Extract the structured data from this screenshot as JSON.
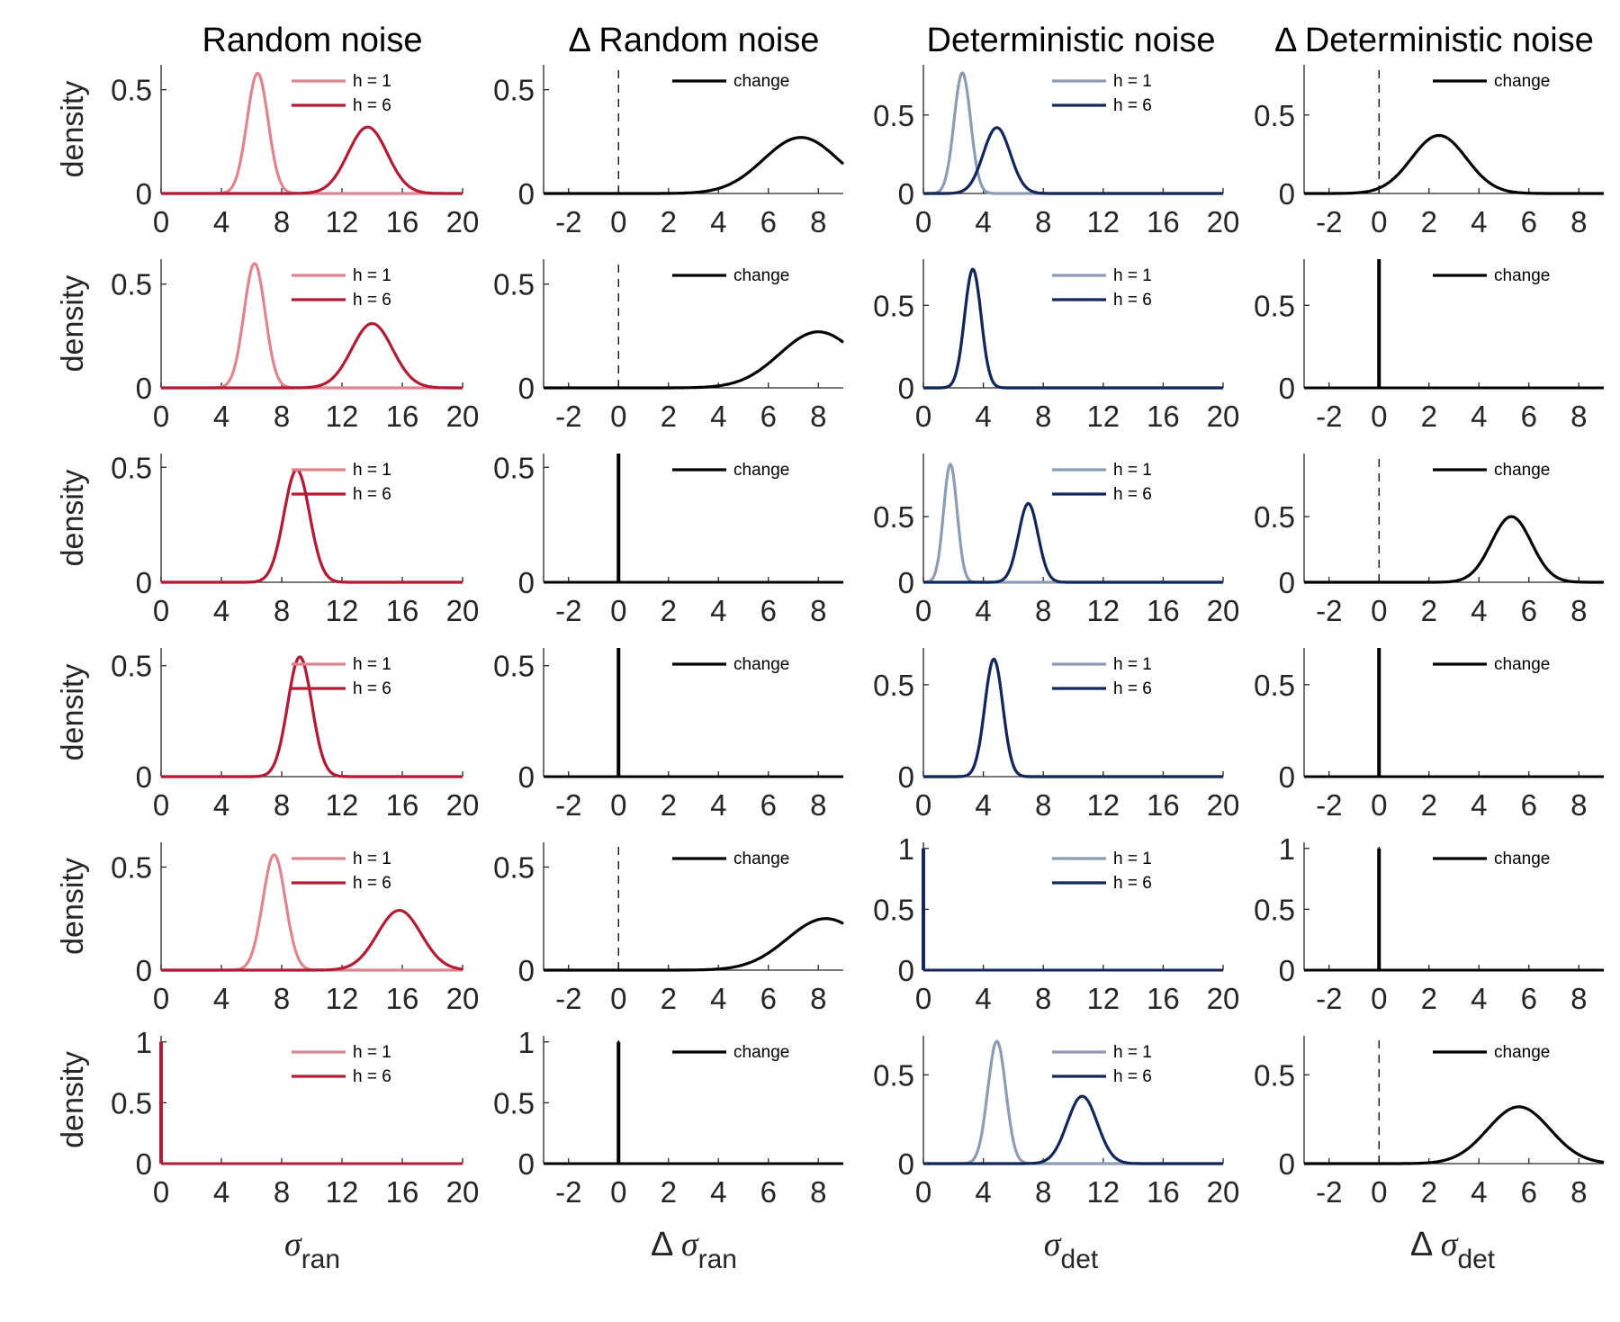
{
  "colors": {
    "ran_h1": "#e0848f",
    "ran_h6": "#b31b34",
    "det_h1": "#8d9bb4",
    "det_h6": "#13265a",
    "change": "#000000"
  },
  "column_titles": [
    "Random noise",
    "Δ Random noise",
    "Deterministic noise",
    "Δ Deterministic noise"
  ],
  "y_axis_label": "density",
  "x_axis_labels": [
    {
      "symbol": "σ",
      "sub": "ran",
      "prefix": ""
    },
    {
      "symbol": "σ",
      "sub": "ran",
      "prefix": "Δ "
    },
    {
      "symbol": "σ",
      "sub": "det",
      "prefix": ""
    },
    {
      "symbol": "σ",
      "sub": "det",
      "prefix": "Δ "
    }
  ],
  "legend_labels": {
    "h1": "h = 1",
    "h6": "h = 6",
    "change": "change"
  },
  "chart_data": [
    {
      "type": "line",
      "row": 1,
      "col": 1,
      "xlim": [
        0,
        20
      ],
      "ylim": [
        0,
        0.62
      ],
      "xticks": [
        0,
        4,
        8,
        12,
        16,
        20
      ],
      "yticks": [
        0,
        0.5
      ],
      "ytick_labels": [
        "0",
        "0.5"
      ],
      "legend": "top-right",
      "series": [
        {
          "name": "h = 1",
          "color_key": "ran_h1",
          "shape": "normal",
          "mean": 6.4,
          "sd": 0.7,
          "peak": 0.58
        },
        {
          "name": "h = 6",
          "color_key": "ran_h6",
          "shape": "normal",
          "mean": 13.7,
          "sd": 1.3,
          "peak": 0.32
        }
      ]
    },
    {
      "type": "line",
      "row": 1,
      "col": 2,
      "xlim": [
        -3,
        9
      ],
      "ylim": [
        0,
        0.62
      ],
      "xticks": [
        -2,
        0,
        2,
        4,
        6,
        8
      ],
      "yticks": [
        0,
        0.5
      ],
      "ytick_labels": [
        "0",
        "0.5"
      ],
      "legend": "top-right",
      "dashed_zero": true,
      "series": [
        {
          "name": "change",
          "color_key": "change",
          "shape": "normal",
          "mean": 7.3,
          "sd": 1.5,
          "peak": 0.27
        }
      ]
    },
    {
      "type": "line",
      "row": 1,
      "col": 3,
      "xlim": [
        0,
        20
      ],
      "ylim": [
        0,
        0.82
      ],
      "xticks": [
        0,
        4,
        8,
        12,
        16,
        20
      ],
      "yticks": [
        0,
        0.5
      ],
      "ytick_labels": [
        "0",
        "0.5"
      ],
      "legend": "top-right",
      "series": [
        {
          "name": "h = 1",
          "color_key": "det_h1",
          "shape": "normal",
          "mean": 2.6,
          "sd": 0.55,
          "peak": 0.77
        },
        {
          "name": "h = 6",
          "color_key": "det_h6",
          "shape": "normal",
          "mean": 4.9,
          "sd": 0.9,
          "peak": 0.42
        }
      ]
    },
    {
      "type": "line",
      "row": 1,
      "col": 4,
      "xlim": [
        -3,
        9
      ],
      "ylim": [
        0,
        0.82
      ],
      "xticks": [
        -2,
        0,
        2,
        4,
        6,
        8
      ],
      "yticks": [
        0,
        0.5
      ],
      "ytick_labels": [
        "0",
        "0.5"
      ],
      "legend": "top-right",
      "dashed_zero": true,
      "series": [
        {
          "name": "change",
          "color_key": "change",
          "shape": "normal",
          "mean": 2.4,
          "sd": 1.1,
          "peak": 0.37
        }
      ]
    },
    {
      "type": "line",
      "row": 2,
      "col": 1,
      "xlim": [
        0,
        20
      ],
      "ylim": [
        0,
        0.62
      ],
      "xticks": [
        0,
        4,
        8,
        12,
        16,
        20
      ],
      "yticks": [
        0,
        0.5
      ],
      "ytick_labels": [
        "0",
        "0.5"
      ],
      "legend": "top-right",
      "series": [
        {
          "name": "h = 1",
          "color_key": "ran_h1",
          "shape": "normal",
          "mean": 6.2,
          "sd": 0.7,
          "peak": 0.6
        },
        {
          "name": "h = 6",
          "color_key": "ran_h6",
          "shape": "normal",
          "mean": 14.0,
          "sd": 1.35,
          "peak": 0.31
        }
      ]
    },
    {
      "type": "line",
      "row": 2,
      "col": 2,
      "xlim": [
        -3,
        9
      ],
      "ylim": [
        0,
        0.62
      ],
      "xticks": [
        -2,
        0,
        2,
        4,
        6,
        8
      ],
      "yticks": [
        0,
        0.5
      ],
      "ytick_labels": [
        "0",
        "0.5"
      ],
      "legend": "top-right",
      "dashed_zero": true,
      "series": [
        {
          "name": "change",
          "color_key": "change",
          "shape": "normal",
          "mean": 8.0,
          "sd": 1.55,
          "peak": 0.27
        }
      ]
    },
    {
      "type": "line",
      "row": 2,
      "col": 3,
      "xlim": [
        0,
        20
      ],
      "ylim": [
        0,
        0.78
      ],
      "xticks": [
        0,
        4,
        8,
        12,
        16,
        20
      ],
      "yticks": [
        0,
        0.5
      ],
      "ytick_labels": [
        "0",
        "0.5"
      ],
      "legend": "top-right",
      "series": [
        {
          "name": "h = 1",
          "color_key": "det_h1",
          "shape": "normal",
          "mean": 3.3,
          "sd": 0.55,
          "peak": 0.72
        },
        {
          "name": "h = 6",
          "color_key": "det_h6",
          "shape": "normal",
          "mean": 3.3,
          "sd": 0.55,
          "peak": 0.72
        }
      ]
    },
    {
      "type": "line",
      "row": 2,
      "col": 4,
      "xlim": [
        -3,
        9
      ],
      "ylim": [
        0,
        0.78
      ],
      "xticks": [
        -2,
        0,
        2,
        4,
        6,
        8
      ],
      "yticks": [
        0,
        0.5
      ],
      "ytick_labels": [
        "0",
        "0.5"
      ],
      "legend": "top-right",
      "dashed_zero": true,
      "series": [
        {
          "name": "change",
          "color_key": "change",
          "shape": "spike",
          "at": 0,
          "peak": 0.78
        }
      ]
    },
    {
      "type": "line",
      "row": 3,
      "col": 1,
      "xlim": [
        0,
        20
      ],
      "ylim": [
        0,
        0.56
      ],
      "xticks": [
        0,
        4,
        8,
        12,
        16,
        20
      ],
      "yticks": [
        0,
        0.5
      ],
      "ytick_labels": [
        "0",
        "0.5"
      ],
      "legend": "top-right",
      "series": [
        {
          "name": "h = 1",
          "color_key": "ran_h1",
          "shape": "normal",
          "mean": 9.0,
          "sd": 0.85,
          "peak": 0.49
        },
        {
          "name": "h = 6",
          "color_key": "ran_h6",
          "shape": "normal",
          "mean": 9.0,
          "sd": 0.85,
          "peak": 0.49
        }
      ]
    },
    {
      "type": "line",
      "row": 3,
      "col": 2,
      "xlim": [
        -3,
        9
      ],
      "ylim": [
        0,
        0.56
      ],
      "xticks": [
        -2,
        0,
        2,
        4,
        6,
        8
      ],
      "yticks": [
        0,
        0.5
      ],
      "ytick_labels": [
        "0",
        "0.5"
      ],
      "legend": "top-right",
      "dashed_zero": true,
      "series": [
        {
          "name": "change",
          "color_key": "change",
          "shape": "spike",
          "at": 0,
          "peak": 0.56
        }
      ]
    },
    {
      "type": "line",
      "row": 3,
      "col": 3,
      "xlim": [
        0,
        20
      ],
      "ylim": [
        0,
        0.98
      ],
      "xticks": [
        0,
        4,
        8,
        12,
        16,
        20
      ],
      "yticks": [
        0,
        0.5
      ],
      "ytick_labels": [
        "0",
        "0.5"
      ],
      "legend": "top-right",
      "series": [
        {
          "name": "h = 1",
          "color_key": "det_h1",
          "shape": "normal",
          "mean": 1.8,
          "sd": 0.45,
          "peak": 0.9
        },
        {
          "name": "h = 6",
          "color_key": "det_h6",
          "shape": "normal",
          "mean": 7.0,
          "sd": 0.65,
          "peak": 0.6
        }
      ]
    },
    {
      "type": "line",
      "row": 3,
      "col": 4,
      "xlim": [
        -3,
        9
      ],
      "ylim": [
        0,
        0.98
      ],
      "xticks": [
        -2,
        0,
        2,
        4,
        6,
        8
      ],
      "yticks": [
        0,
        0.5
      ],
      "ytick_labels": [
        "0",
        "0.5"
      ],
      "legend": "top-right",
      "dashed_zero": true,
      "series": [
        {
          "name": "change",
          "color_key": "change",
          "shape": "normal",
          "mean": 5.3,
          "sd": 0.8,
          "peak": 0.5
        }
      ]
    },
    {
      "type": "line",
      "row": 4,
      "col": 1,
      "xlim": [
        0,
        20
      ],
      "ylim": [
        0,
        0.58
      ],
      "xticks": [
        0,
        4,
        8,
        12,
        16,
        20
      ],
      "yticks": [
        0,
        0.5
      ],
      "ytick_labels": [
        "0",
        "0.5"
      ],
      "legend": "top-right",
      "series": [
        {
          "name": "h = 1",
          "color_key": "ran_h1",
          "shape": "normal",
          "mean": 9.2,
          "sd": 0.8,
          "peak": 0.54
        },
        {
          "name": "h = 6",
          "color_key": "ran_h6",
          "shape": "normal",
          "mean": 9.2,
          "sd": 0.8,
          "peak": 0.54
        }
      ]
    },
    {
      "type": "line",
      "row": 4,
      "col": 2,
      "xlim": [
        -3,
        9
      ],
      "ylim": [
        0,
        0.58
      ],
      "xticks": [
        -2,
        0,
        2,
        4,
        6,
        8
      ],
      "yticks": [
        0,
        0.5
      ],
      "ytick_labels": [
        "0",
        "0.5"
      ],
      "legend": "top-right",
      "dashed_zero": true,
      "series": [
        {
          "name": "change",
          "color_key": "change",
          "shape": "spike",
          "at": 0,
          "peak": 0.58
        }
      ]
    },
    {
      "type": "line",
      "row": 4,
      "col": 3,
      "xlim": [
        0,
        20
      ],
      "ylim": [
        0,
        0.7
      ],
      "xticks": [
        0,
        4,
        8,
        12,
        16,
        20
      ],
      "yticks": [
        0,
        0.5
      ],
      "ytick_labels": [
        "0",
        "0.5"
      ],
      "legend": "top-right",
      "series": [
        {
          "name": "h = 1",
          "color_key": "det_h1",
          "shape": "normal",
          "mean": 4.7,
          "sd": 0.6,
          "peak": 0.64
        },
        {
          "name": "h = 6",
          "color_key": "det_h6",
          "shape": "normal",
          "mean": 4.7,
          "sd": 0.6,
          "peak": 0.64
        }
      ]
    },
    {
      "type": "line",
      "row": 4,
      "col": 4,
      "xlim": [
        -3,
        9
      ],
      "ylim": [
        0,
        0.7
      ],
      "xticks": [
        -2,
        0,
        2,
        4,
        6,
        8
      ],
      "yticks": [
        0,
        0.5
      ],
      "ytick_labels": [
        "0",
        "0.5"
      ],
      "legend": "top-right",
      "dashed_zero": true,
      "series": [
        {
          "name": "change",
          "color_key": "change",
          "shape": "spike",
          "at": 0,
          "peak": 0.7
        }
      ]
    },
    {
      "type": "line",
      "row": 5,
      "col": 1,
      "xlim": [
        0,
        20
      ],
      "ylim": [
        0,
        0.62
      ],
      "xticks": [
        0,
        4,
        8,
        12,
        16,
        20
      ],
      "yticks": [
        0,
        0.5
      ],
      "ytick_labels": [
        "0",
        "0.5"
      ],
      "legend": "top-right",
      "series": [
        {
          "name": "h = 1",
          "color_key": "ran_h1",
          "shape": "normal",
          "mean": 7.5,
          "sd": 0.75,
          "peak": 0.56
        },
        {
          "name": "h = 6",
          "color_key": "ran_h6",
          "shape": "normal",
          "mean": 15.8,
          "sd": 1.45,
          "peak": 0.29
        }
      ]
    },
    {
      "type": "line",
      "row": 5,
      "col": 2,
      "xlim": [
        -3,
        9
      ],
      "ylim": [
        0,
        0.62
      ],
      "xticks": [
        -2,
        0,
        2,
        4,
        6,
        8
      ],
      "yticks": [
        0,
        0.5
      ],
      "ytick_labels": [
        "0",
        "0.5"
      ],
      "legend": "top-right",
      "dashed_zero": true,
      "series": [
        {
          "name": "change",
          "color_key": "change",
          "shape": "normal",
          "mean": 8.3,
          "sd": 1.55,
          "peak": 0.25
        }
      ]
    },
    {
      "type": "line",
      "row": 5,
      "col": 3,
      "xlim": [
        0,
        20
      ],
      "ylim": [
        0,
        1.05
      ],
      "xticks": [
        0,
        4,
        8,
        12,
        16,
        20
      ],
      "yticks": [
        0,
        0.5,
        1
      ],
      "ytick_labels": [
        "0",
        "0.5",
        "1"
      ],
      "legend": "top-right",
      "series": [
        {
          "name": "h = 1",
          "color_key": "det_h1",
          "shape": "spike",
          "at": 0,
          "peak": 1.0
        },
        {
          "name": "h = 6",
          "color_key": "det_h6",
          "shape": "spike",
          "at": 0,
          "peak": 1.0
        }
      ]
    },
    {
      "type": "line",
      "row": 5,
      "col": 4,
      "xlim": [
        -3,
        9
      ],
      "ylim": [
        0,
        1.05
      ],
      "xticks": [
        -2,
        0,
        2,
        4,
        6,
        8
      ],
      "yticks": [
        0,
        0.5,
        1
      ],
      "ytick_labels": [
        "0",
        "0.5",
        "1"
      ],
      "legend": "top-right",
      "dashed_zero": true,
      "series": [
        {
          "name": "change",
          "color_key": "change",
          "shape": "spike",
          "at": 0,
          "peak": 1.0
        }
      ]
    },
    {
      "type": "line",
      "row": 6,
      "col": 1,
      "xlim": [
        0,
        20
      ],
      "ylim": [
        0,
        1.05
      ],
      "xticks": [
        0,
        4,
        8,
        12,
        16,
        20
      ],
      "yticks": [
        0,
        0.5,
        1
      ],
      "ytick_labels": [
        "0",
        "0.5",
        "1"
      ],
      "legend": "top-right",
      "series": [
        {
          "name": "h = 1",
          "color_key": "ran_h1",
          "shape": "spike",
          "at": 0,
          "peak": 1.0
        },
        {
          "name": "h = 6",
          "color_key": "ran_h6",
          "shape": "spike",
          "at": 0,
          "peak": 1.0
        }
      ]
    },
    {
      "type": "line",
      "row": 6,
      "col": 2,
      "xlim": [
        -3,
        9
      ],
      "ylim": [
        0,
        1.05
      ],
      "xticks": [
        -2,
        0,
        2,
        4,
        6,
        8
      ],
      "yticks": [
        0,
        0.5,
        1
      ],
      "ytick_labels": [
        "0",
        "0.5",
        "1"
      ],
      "legend": "top-right",
      "dashed_zero": true,
      "series": [
        {
          "name": "change",
          "color_key": "change",
          "shape": "spike",
          "at": 0,
          "peak": 1.0
        }
      ]
    },
    {
      "type": "line",
      "row": 6,
      "col": 3,
      "xlim": [
        0,
        20
      ],
      "ylim": [
        0,
        0.72
      ],
      "xticks": [
        0,
        4,
        8,
        12,
        16,
        20
      ],
      "yticks": [
        0,
        0.5
      ],
      "ytick_labels": [
        "0",
        "0.5"
      ],
      "legend": "top-right",
      "series": [
        {
          "name": "h = 1",
          "color_key": "det_h1",
          "shape": "normal",
          "mean": 4.9,
          "sd": 0.6,
          "peak": 0.69
        },
        {
          "name": "h = 6",
          "color_key": "det_h6",
          "shape": "normal",
          "mean": 10.6,
          "sd": 1.0,
          "peak": 0.38
        }
      ]
    },
    {
      "type": "line",
      "row": 6,
      "col": 4,
      "xlim": [
        -3,
        9
      ],
      "ylim": [
        0,
        0.72
      ],
      "xticks": [
        -2,
        0,
        2,
        4,
        6,
        8
      ],
      "yticks": [
        0,
        0.5
      ],
      "ytick_labels": [
        "0",
        "0.5"
      ],
      "legend": "top-right",
      "dashed_zero": true,
      "series": [
        {
          "name": "change",
          "color_key": "change",
          "shape": "normal",
          "mean": 5.6,
          "sd": 1.25,
          "peak": 0.32
        }
      ]
    }
  ]
}
